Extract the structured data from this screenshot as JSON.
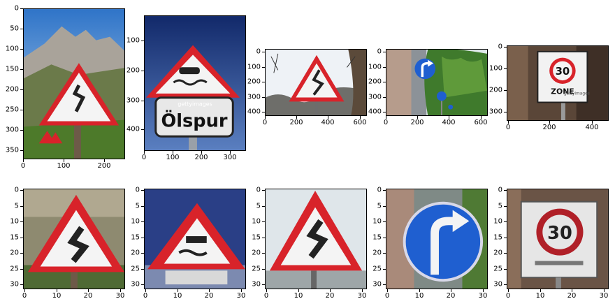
{
  "panels": [
    {
      "id": "p1",
      "sign": "curve-warning",
      "axes": {
        "x_ticks": [
          "0",
          "100",
          "200"
        ],
        "y_ticks": [
          "0",
          "50",
          "100",
          "150",
          "200",
          "250",
          "300",
          "350"
        ]
      }
    },
    {
      "id": "p2",
      "sign": "slippery-road",
      "axes": {
        "x_ticks": [
          "0",
          "100",
          "200",
          "300"
        ],
        "y_ticks": [
          "100",
          "200",
          "300",
          "400"
        ]
      },
      "texts": {
        "plate": "Ölspur",
        "watermark": "gettyimages"
      }
    },
    {
      "id": "p3",
      "sign": "curve-warning",
      "axes": {
        "x_ticks": [
          "0",
          "200",
          "400",
          "600"
        ],
        "y_ticks": [
          "0",
          "100",
          "200",
          "300",
          "400"
        ]
      }
    },
    {
      "id": "p4",
      "sign": "turn-right-blue",
      "axes": {
        "x_ticks": [
          "0",
          "200",
          "400",
          "600"
        ],
        "y_ticks": [
          "0",
          "100",
          "200",
          "300",
          "400"
        ]
      }
    },
    {
      "id": "p5",
      "sign": "speed-30-zone",
      "axes": {
        "x_ticks": [
          "0",
          "200",
          "400"
        ],
        "y_ticks": [
          "0",
          "100",
          "200",
          "300"
        ]
      },
      "texts": {
        "number": "30",
        "zone": "ZONE",
        "watermark": "gettyimages"
      }
    },
    {
      "id": "p6",
      "sign": "curve-warning-small",
      "axes": {
        "x_ticks": [
          "0",
          "10",
          "20",
          "30"
        ],
        "y_ticks": [
          "0",
          "5",
          "10",
          "15",
          "20",
          "25",
          "30"
        ]
      }
    },
    {
      "id": "p7",
      "sign": "slippery-road-small",
      "axes": {
        "x_ticks": [
          "0",
          "10",
          "20",
          "30"
        ],
        "y_ticks": [
          "0",
          "5",
          "10",
          "15",
          "20",
          "25",
          "30"
        ]
      }
    },
    {
      "id": "p8",
      "sign": "curve-warning-small",
      "axes": {
        "x_ticks": [
          "0",
          "10",
          "20",
          "30"
        ],
        "y_ticks": [
          "0",
          "5",
          "10",
          "15",
          "20",
          "25",
          "30"
        ]
      }
    },
    {
      "id": "p9",
      "sign": "turn-right-blue-small",
      "axes": {
        "x_ticks": [
          "0",
          "10",
          "20",
          "30"
        ],
        "y_ticks": [
          "0",
          "5",
          "10",
          "15",
          "20",
          "25",
          "30"
        ]
      }
    },
    {
      "id": "p10",
      "sign": "speed-30-small",
      "axes": {
        "x_ticks": [
          "0",
          "10",
          "20",
          "30"
        ],
        "y_ticks": [
          "0",
          "5",
          "10",
          "15",
          "20",
          "25",
          "30"
        ]
      },
      "texts": {
        "number": "30"
      }
    }
  ],
  "colors": {
    "sign_red": "#d8232a",
    "sign_blue": "#1f5fd0",
    "sign_white": "#f4f4f4"
  }
}
